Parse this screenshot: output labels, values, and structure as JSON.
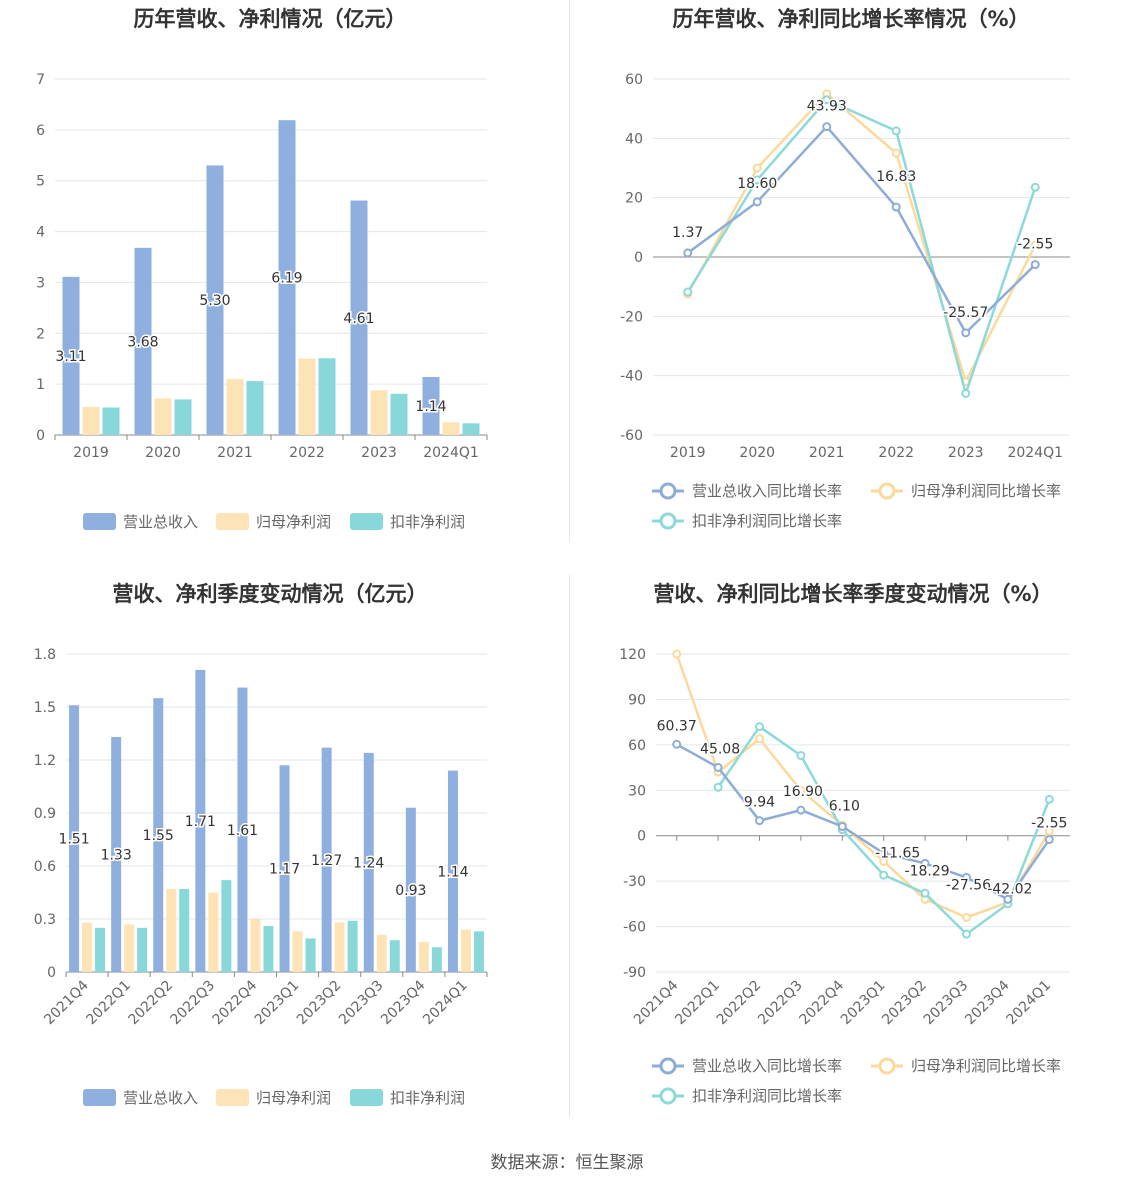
{
  "footer": {
    "source": "数据来源：恒生聚源"
  },
  "colors": {
    "revenue": "#8fb0de",
    "net": "#fde3b5",
    "deducted": "#88d8da",
    "revLine": "#8eacd8",
    "netLine": "#fbd99a",
    "dedLine": "#8cd9d9"
  },
  "chart_data": [
    {
      "type": "bar",
      "title": "历年营收、净利情况（亿元）",
      "categories": [
        "2019",
        "2020",
        "2021",
        "2022",
        "2023",
        "2024Q1"
      ],
      "ylim": [
        0,
        7
      ],
      "yticks": [
        "0",
        "1",
        "2",
        "3",
        "4",
        "5",
        "6",
        "7"
      ],
      "series": [
        {
          "name": "营业总收入",
          "values": [
            3.11,
            3.68,
            5.3,
            6.19,
            4.61,
            1.14
          ],
          "labels": [
            "3.11",
            "3.68",
            "5.30",
            "6.19",
            "4.61",
            "1.14"
          ]
        },
        {
          "name": "归母净利润",
          "values": [
            0.55,
            0.72,
            1.1,
            1.5,
            0.88,
            0.25
          ]
        },
        {
          "name": "扣非净利润",
          "values": [
            0.54,
            0.7,
            1.06,
            1.51,
            0.81,
            0.23
          ]
        }
      ],
      "grid": true,
      "legend": "bottom"
    },
    {
      "type": "line",
      "title": "历年营收、净利同比增长率情况（%）",
      "categories": [
        "2019",
        "2020",
        "2021",
        "2022",
        "2023",
        "2024Q1"
      ],
      "ylim": [
        -60,
        60
      ],
      "yticks": [
        "-60",
        "-40",
        "-20",
        "0",
        "20",
        "40",
        "60"
      ],
      "series": [
        {
          "name": "营业总收入同比增长率",
          "values": [
            1.37,
            18.6,
            43.93,
            16.83,
            -25.57,
            -2.55
          ],
          "labels": [
            "1.37",
            "18.60",
            "43.93",
            "16.83",
            "-25.57",
            "-2.55"
          ]
        },
        {
          "name": "归母净利润同比增长率",
          "values": [
            -12.5,
            30,
            55,
            35,
            -42,
            4
          ]
        },
        {
          "name": "扣非净利润同比增长率",
          "values": [
            -11.8,
            26,
            53,
            42.5,
            -46,
            23.5
          ]
        }
      ],
      "grid": true,
      "legend": "bottom"
    },
    {
      "type": "bar",
      "title": "营收、净利季度变动情况（亿元）",
      "categories": [
        "2021Q4",
        "2022Q1",
        "2022Q2",
        "2022Q3",
        "2022Q4",
        "2023Q1",
        "2023Q2",
        "2023Q3",
        "2023Q4",
        "2024Q1"
      ],
      "ylim": [
        0,
        1.8
      ],
      "yticks": [
        "0",
        "0.3",
        "0.6",
        "0.9",
        "1.2",
        "1.5",
        "1.8"
      ],
      "series": [
        {
          "name": "营业总收入",
          "values": [
            1.51,
            1.33,
            1.55,
            1.71,
            1.61,
            1.17,
            1.27,
            1.24,
            0.93,
            1.14
          ],
          "labels": [
            "1.51",
            "1.33",
            "1.55",
            "1.71",
            "1.61",
            "1.17",
            "1.27",
            "1.24",
            "0.93",
            "1.14"
          ]
        },
        {
          "name": "归母净利润",
          "values": [
            0.28,
            0.27,
            0.47,
            0.45,
            0.3,
            0.23,
            0.28,
            0.21,
            0.17,
            0.24
          ]
        },
        {
          "name": "扣非净利润",
          "values": [
            0.25,
            0.25,
            0.47,
            0.52,
            0.26,
            0.19,
            0.29,
            0.18,
            0.14,
            0.23
          ]
        }
      ],
      "grid": true,
      "legend": "bottom"
    },
    {
      "type": "line",
      "title": "营收、净利同比增长率季度变动情况（%）",
      "categories": [
        "2021Q4",
        "2022Q1",
        "2022Q2",
        "2022Q3",
        "2022Q4",
        "2023Q1",
        "2023Q2",
        "2023Q3",
        "2023Q4",
        "2024Q1"
      ],
      "ylim": [
        -90,
        120
      ],
      "yticks": [
        "-90",
        "-60",
        "-30",
        "0",
        "30",
        "60",
        "90",
        "120"
      ],
      "series": [
        {
          "name": "营业总收入同比增长率",
          "values": [
            60.37,
            45.08,
            9.94,
            16.9,
            6.1,
            -11.65,
            -18.29,
            -27.56,
            -42.02,
            -2.55
          ],
          "labels": [
            "60.37",
            "45.08",
            "9.94",
            "16.90",
            "6.10",
            "-11.65",
            "-18.29",
            "-27.56",
            "-42.02",
            "-2.55"
          ]
        },
        {
          "name": "归母净利润同比增长率",
          "values": [
            120,
            42,
            64,
            30,
            7,
            -17,
            -42,
            -54,
            -44,
            3
          ]
        },
        {
          "name": "扣非净利润同比增长率",
          "values": [
            null,
            32,
            72,
            53,
            4,
            -26,
            -38,
            -65,
            -45,
            24
          ]
        }
      ],
      "grid": true,
      "legend": "bottom"
    }
  ]
}
